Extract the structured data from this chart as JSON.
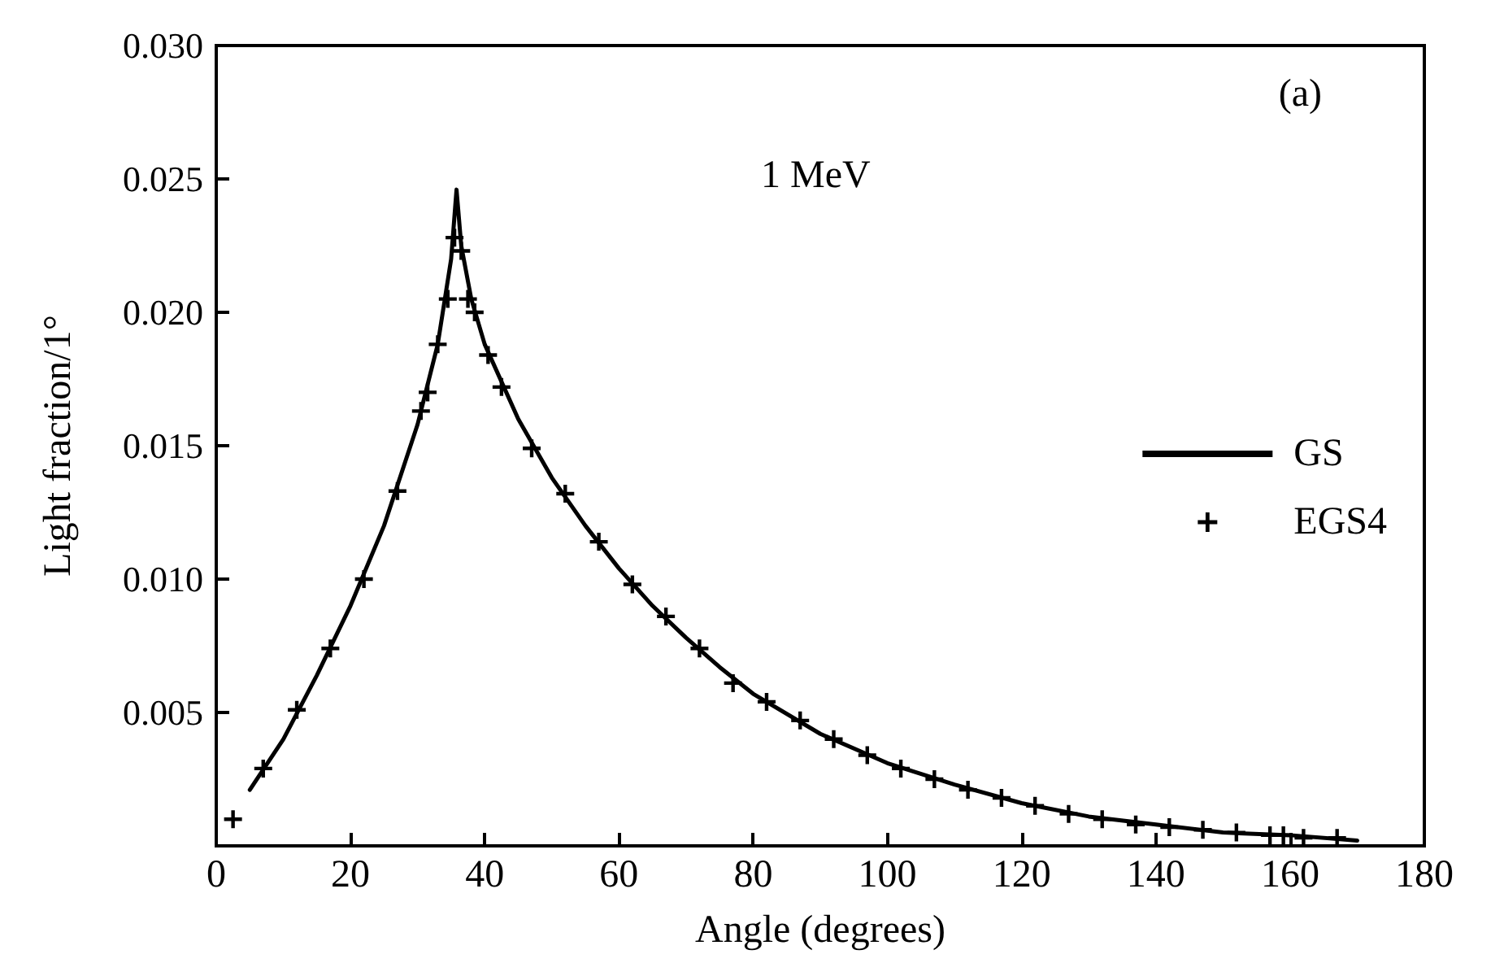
{
  "chart_data": {
    "type": "line",
    "xlabel": "Angle (degrees)",
    "ylabel": "Light fraction/1°",
    "annotations": [
      "(a)",
      "1 MeV"
    ],
    "xlim": [
      0,
      180
    ],
    "xticks": [
      0,
      20,
      40,
      60,
      80,
      100,
      120,
      140,
      160,
      180
    ],
    "ylim": [
      0,
      0.03
    ],
    "yticks": [
      {
        "value": 0.005,
        "label": "0.005"
      },
      {
        "value": 0.01,
        "label": "0.010"
      },
      {
        "value": 0.015,
        "label": "0.015"
      },
      {
        "value": 0.02,
        "label": "0.020"
      },
      {
        "value": 0.025,
        "label": "0.025"
      },
      {
        "value": 0.03,
        "label": "0.030"
      }
    ],
    "grid": false,
    "legend": "right",
    "series": [
      {
        "name": "GS",
        "color": "#000000",
        "marker": "none",
        "line_style": "solid",
        "x": [
          5,
          10,
          15,
          20,
          25,
          30,
          33,
          35,
          35.8,
          36.5,
          38,
          40,
          45,
          50,
          55,
          60,
          65,
          70,
          75,
          80,
          90,
          100,
          110,
          120,
          130,
          140,
          150,
          160,
          170
        ],
        "values": [
          0.0021,
          0.004,
          0.0064,
          0.009,
          0.012,
          0.0158,
          0.0188,
          0.022,
          0.0246,
          0.0225,
          0.0205,
          0.0188,
          0.016,
          0.0138,
          0.012,
          0.0104,
          0.009,
          0.0078,
          0.0067,
          0.0057,
          0.0042,
          0.0031,
          0.0023,
          0.0016,
          0.0011,
          0.0008,
          0.0005,
          0.0004,
          0.0002
        ]
      },
      {
        "name": "EGS4",
        "type": "scatter",
        "color": "#000000",
        "marker": "cross",
        "x": [
          2.5,
          7,
          12,
          17,
          22,
          27,
          30.5,
          31.5,
          33,
          34.5,
          35.5,
          36.5,
          37.5,
          38.5,
          40.5,
          42.5,
          47,
          52,
          57,
          62,
          67,
          72,
          77,
          82,
          87,
          92,
          97,
          102,
          107,
          112,
          117,
          122,
          127,
          132,
          137,
          142,
          147,
          152,
          157,
          159,
          162,
          167
        ],
        "values": [
          0.001,
          0.0029,
          0.0051,
          0.0074,
          0.01,
          0.0133,
          0.0163,
          0.017,
          0.0188,
          0.0205,
          0.0228,
          0.0223,
          0.0205,
          0.02,
          0.0184,
          0.0172,
          0.0149,
          0.0132,
          0.0114,
          0.0098,
          0.0086,
          0.0074,
          0.0061,
          0.0054,
          0.0047,
          0.004,
          0.0034,
          0.0029,
          0.0025,
          0.0021,
          0.0018,
          0.0015,
          0.0012,
          0.001,
          0.0008,
          0.0007,
          0.0006,
          0.0005,
          0.0004,
          0.0004,
          0.0003,
          0.0003
        ]
      }
    ]
  }
}
